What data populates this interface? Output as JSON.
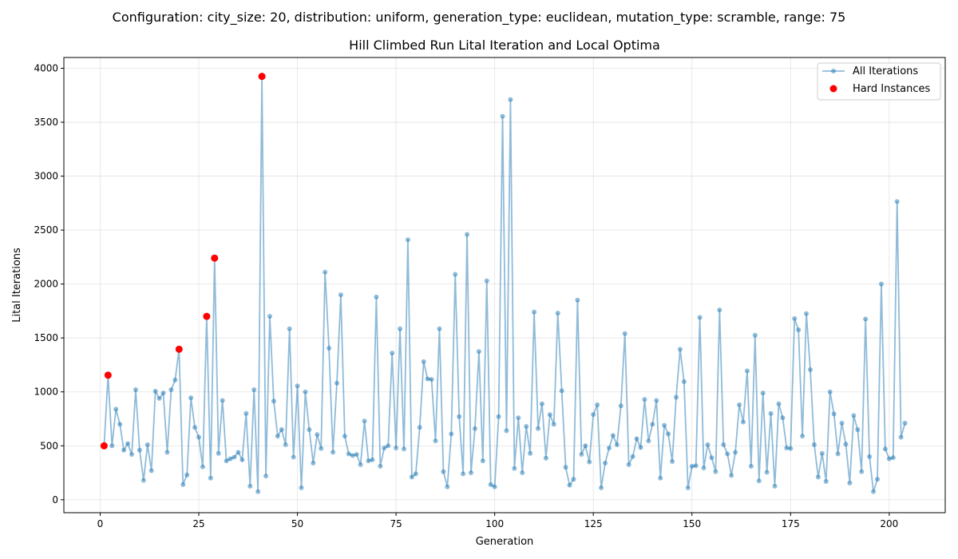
{
  "figure": {
    "suptitle": "Configuration: city_size: 20, distribution: uniform, generation_type: euclidean, mutation_type: scramble, range: 75"
  },
  "chart_data": {
    "type": "line",
    "title": "Hill Climbed Run Lital Iteration and Local Optima",
    "xlabel": "Generation",
    "ylabel": "Lital Iterations",
    "xlim": [
      -9.2,
      214.2
    ],
    "ylim": [
      -120,
      4100
    ],
    "xticks": [
      0,
      25,
      50,
      75,
      100,
      125,
      150,
      175,
      200
    ],
    "yticks": [
      0,
      500,
      1000,
      1500,
      2000,
      2500,
      3000,
      3500,
      4000
    ],
    "grid": true,
    "legend": {
      "placement": "top-right",
      "entries": [
        "All Iterations",
        "Hard Instances"
      ]
    },
    "colors": {
      "line": "#1f77b4",
      "hard": "#ff0000"
    },
    "series": [
      {
        "name": "All Iterations",
        "marker": "circle",
        "x": [
          1,
          2,
          3,
          4,
          5,
          6,
          7,
          8,
          9,
          10,
          11,
          12,
          13,
          14,
          15,
          16,
          17,
          18,
          19,
          20,
          21,
          22,
          23,
          24,
          25,
          26,
          27,
          28,
          29,
          30,
          31,
          32,
          33,
          34,
          35,
          36,
          37,
          38,
          39,
          40,
          41,
          42,
          43,
          44,
          45,
          46,
          47,
          48,
          49,
          50,
          51,
          52,
          53,
          54,
          55,
          56,
          57,
          58,
          59,
          60,
          61,
          62,
          63,
          64,
          65,
          66,
          67,
          68,
          69,
          70,
          71,
          72,
          73,
          74,
          75,
          76,
          77,
          78,
          79,
          80,
          81,
          82,
          83,
          84,
          85,
          86,
          87,
          88,
          89,
          90,
          91,
          92,
          93,
          94,
          95,
          96,
          97,
          98,
          99,
          100,
          101,
          102,
          103,
          104,
          105,
          106,
          107,
          108,
          109,
          110,
          111,
          112,
          113,
          114,
          115,
          116,
          117,
          118,
          119,
          120,
          121,
          122,
          123,
          124,
          125,
          126,
          127,
          128,
          129,
          130,
          131,
          132,
          133,
          134,
          135,
          136,
          137,
          138,
          139,
          140,
          141,
          142,
          143,
          144,
          145,
          146,
          147,
          148,
          149,
          150,
          151,
          152,
          153,
          154,
          155,
          156,
          157,
          158,
          159,
          160,
          161,
          162,
          163,
          164,
          165,
          166,
          167,
          168,
          169,
          170,
          171,
          172,
          173,
          174,
          175,
          176,
          177,
          178,
          179,
          180,
          181,
          182,
          183,
          184,
          185,
          186,
          187,
          188,
          189,
          190,
          191,
          192,
          193,
          194,
          195,
          196,
          197,
          198,
          199,
          200,
          201,
          202,
          203,
          204
        ],
        "values": [
          500,
          1155,
          500,
          840,
          700,
          460,
          520,
          420,
          1020,
          460,
          180,
          510,
          270,
          1005,
          940,
          990,
          440,
          1020,
          1110,
          1395,
          140,
          230,
          945,
          670,
          580,
          305,
          1700,
          200,
          2240,
          430,
          920,
          360,
          380,
          395,
          440,
          370,
          800,
          125,
          1020,
          75,
          3925,
          220,
          1700,
          915,
          590,
          650,
          510,
          1585,
          395,
          1055,
          110,
          1000,
          650,
          340,
          605,
          475,
          2110,
          1405,
          440,
          1080,
          1900,
          590,
          425,
          410,
          420,
          325,
          730,
          360,
          370,
          1880,
          310,
          480,
          500,
          1360,
          480,
          1585,
          470,
          2410,
          210,
          240,
          670,
          1280,
          1120,
          1115,
          545,
          1585,
          260,
          120,
          610,
          2090,
          770,
          240,
          2460,
          250,
          660,
          1375,
          360,
          2030,
          140,
          120,
          770,
          3555,
          640,
          3710,
          290,
          760,
          250,
          680,
          430,
          1740,
          660,
          890,
          385,
          790,
          700,
          1730,
          1010,
          300,
          135,
          190,
          1850,
          420,
          500,
          350,
          790,
          880,
          110,
          340,
          480,
          595,
          510,
          870,
          1540,
          325,
          400,
          565,
          485,
          930,
          545,
          700,
          920,
          200,
          690,
          610,
          355,
          950,
          1395,
          1095,
          110,
          310,
          315,
          1690,
          295,
          510,
          390,
          260,
          1760,
          510,
          425,
          225,
          440,
          880,
          720,
          1195,
          310,
          1525,
          175,
          990,
          255,
          800,
          125,
          890,
          760,
          480,
          475,
          1680,
          1575,
          590,
          1725,
          1205,
          510,
          210,
          430,
          170,
          1000,
          795,
          425,
          710,
          515,
          155,
          780,
          650,
          260,
          1675,
          400,
          75,
          190,
          2000,
          470,
          380,
          390,
          2765,
          580,
          710
        ]
      },
      {
        "name": "Hard Instances",
        "marker": "circle",
        "x": [
          1,
          2,
          20,
          27,
          29,
          41
        ],
        "values": [
          500,
          1155,
          1395,
          1700,
          2240,
          3925
        ]
      }
    ]
  }
}
